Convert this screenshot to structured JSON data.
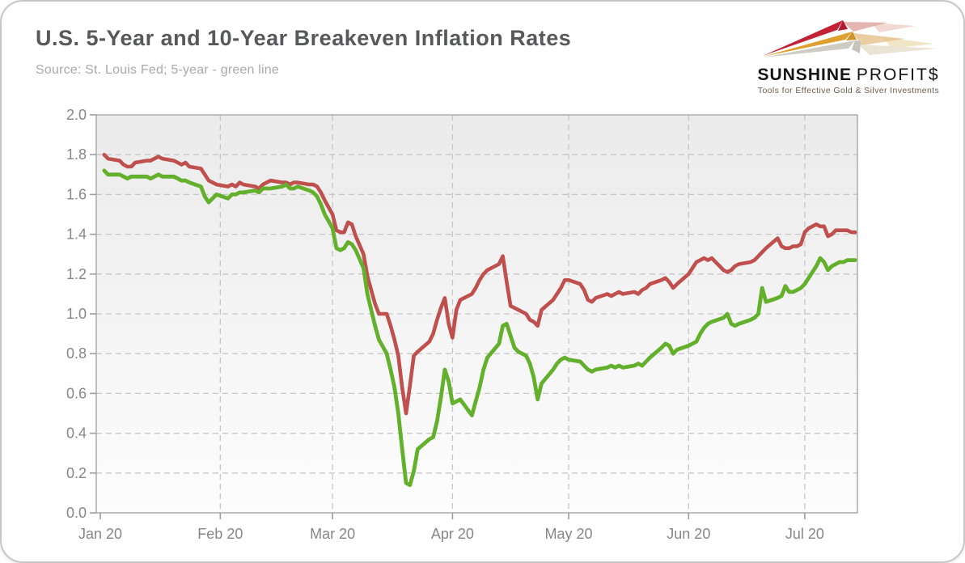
{
  "header": {
    "title": "U.S. 5-Year and 10-Year Breakeven Inflation Rates",
    "source": "Source: St. Louis Fed; 5-year - green line"
  },
  "logo": {
    "brand_primary": "SUNSHINE",
    "brand_secondary": "PROFIT$",
    "tagline": "Tools for Effective Gold & Silver Investments",
    "arrow_colors": {
      "red": "#c32136",
      "gold": "#dfa02f",
      "silver": "#cfccc4"
    }
  },
  "chart_data": {
    "type": "line",
    "title": "U.S. 5-Year and 10-Year Breakeven Inflation Rates",
    "xlabel": "",
    "ylabel": "",
    "grid": "dashed",
    "legend_position": "none (identified in subtitle: 5-year - green line)",
    "y_axis": {
      "min": 0.0,
      "max": 2.0,
      "step": 0.2,
      "tick_labels": [
        "0.0",
        "0.2",
        "0.4",
        "0.6",
        "0.8",
        "1.0",
        "1.2",
        "1.4",
        "1.6",
        "1.8",
        "2.0"
      ]
    },
    "x_axis": {
      "unit": "days since Jan 1, 2020",
      "tick_labels": [
        "Jan 20",
        "Feb 20",
        "Mar 20",
        "Apr 20",
        "May 20",
        "Jun 20",
        "Jul 20"
      ],
      "tick_t": [
        0,
        31,
        60,
        91,
        121,
        152,
        182
      ]
    },
    "t": [
      1,
      2,
      5,
      6,
      7,
      8,
      9,
      12,
      13,
      14,
      15,
      16,
      19,
      20,
      21,
      22,
      23,
      26,
      27,
      28,
      29,
      30,
      33,
      34,
      35,
      36,
      37,
      40,
      41,
      42,
      43,
      44,
      47,
      48,
      49,
      50,
      51,
      54,
      55,
      56,
      57,
      58,
      60,
      61,
      62,
      63,
      64,
      65,
      66,
      68,
      69,
      70,
      71,
      72,
      74,
      75,
      76,
      77,
      78,
      79,
      80,
      81,
      82,
      85,
      86,
      87,
      88,
      89,
      90,
      91,
      92,
      93,
      96,
      97,
      98,
      99,
      100,
      103,
      104,
      105,
      106,
      107,
      108,
      110,
      111,
      112,
      113,
      114,
      117,
      118,
      119,
      120,
      121,
      124,
      125,
      126,
      127,
      128,
      131,
      132,
      133,
      134,
      135,
      138,
      139,
      140,
      141,
      142,
      145,
      146,
      147,
      148,
      149,
      152,
      153,
      154,
      155,
      156,
      157,
      158,
      161,
      162,
      163,
      164,
      165,
      168,
      169,
      170,
      171,
      172,
      175,
      176,
      177,
      178,
      179,
      180,
      181,
      182,
      183,
      184,
      185,
      186,
      187,
      188,
      189,
      190,
      191,
      192,
      193,
      194,
      195
    ],
    "series": [
      {
        "name": "10-Year Breakeven Inflation Rate",
        "color": "#c0504d",
        "width": 4.6,
        "values": [
          1.8,
          1.78,
          1.77,
          1.75,
          1.74,
          1.74,
          1.76,
          1.77,
          1.77,
          1.78,
          1.79,
          1.78,
          1.77,
          1.76,
          1.75,
          1.76,
          1.74,
          1.73,
          1.7,
          1.67,
          1.66,
          1.65,
          1.64,
          1.65,
          1.64,
          1.66,
          1.65,
          1.64,
          1.63,
          1.65,
          1.66,
          1.67,
          1.66,
          1.66,
          1.65,
          1.66,
          1.66,
          1.65,
          1.65,
          1.64,
          1.61,
          1.57,
          1.5,
          1.42,
          1.41,
          1.41,
          1.46,
          1.45,
          1.39,
          1.3,
          1.19,
          1.12,
          1.05,
          1.0,
          1.0,
          0.94,
          0.87,
          0.79,
          0.63,
          0.5,
          0.64,
          0.79,
          0.81,
          0.86,
          0.9,
          0.97,
          1.03,
          1.08,
          0.95,
          0.88,
          1.02,
          1.07,
          1.1,
          1.13,
          1.17,
          1.2,
          1.22,
          1.25,
          1.29,
          1.16,
          1.04,
          1.03,
          1.02,
          1.0,
          0.97,
          0.96,
          0.94,
          1.02,
          1.07,
          1.1,
          1.13,
          1.17,
          1.17,
          1.15,
          1.12,
          1.07,
          1.06,
          1.08,
          1.1,
          1.09,
          1.1,
          1.11,
          1.1,
          1.11,
          1.1,
          1.12,
          1.13,
          1.15,
          1.17,
          1.18,
          1.16,
          1.13,
          1.15,
          1.2,
          1.23,
          1.26,
          1.27,
          1.28,
          1.27,
          1.28,
          1.22,
          1.21,
          1.22,
          1.24,
          1.25,
          1.26,
          1.27,
          1.29,
          1.31,
          1.33,
          1.38,
          1.34,
          1.33,
          1.33,
          1.34,
          1.34,
          1.35,
          1.41,
          1.43,
          1.44,
          1.45,
          1.44,
          1.44,
          1.39,
          1.4,
          1.42,
          1.42,
          1.42,
          1.42,
          1.41,
          1.41
        ]
      },
      {
        "name": "5-Year Breakeven Inflation Rate",
        "color": "#63b02c",
        "width": 4.8,
        "values": [
          1.72,
          1.7,
          1.7,
          1.69,
          1.68,
          1.69,
          1.69,
          1.69,
          1.68,
          1.69,
          1.7,
          1.69,
          1.69,
          1.68,
          1.67,
          1.67,
          1.66,
          1.64,
          1.59,
          1.56,
          1.58,
          1.6,
          1.58,
          1.6,
          1.6,
          1.61,
          1.61,
          1.62,
          1.61,
          1.63,
          1.63,
          1.63,
          1.64,
          1.65,
          1.63,
          1.63,
          1.64,
          1.62,
          1.61,
          1.59,
          1.55,
          1.5,
          1.43,
          1.33,
          1.32,
          1.33,
          1.36,
          1.35,
          1.32,
          1.23,
          1.1,
          1.02,
          0.94,
          0.87,
          0.8,
          0.72,
          0.63,
          0.5,
          0.32,
          0.15,
          0.14,
          0.21,
          0.32,
          0.37,
          0.38,
          0.46,
          0.58,
          0.72,
          0.66,
          0.55,
          0.56,
          0.57,
          0.49,
          0.56,
          0.63,
          0.72,
          0.78,
          0.85,
          0.94,
          0.95,
          0.89,
          0.83,
          0.81,
          0.79,
          0.75,
          0.68,
          0.57,
          0.65,
          0.72,
          0.75,
          0.77,
          0.78,
          0.77,
          0.76,
          0.74,
          0.72,
          0.71,
          0.72,
          0.73,
          0.74,
          0.73,
          0.74,
          0.73,
          0.74,
          0.75,
          0.74,
          0.76,
          0.78,
          0.83,
          0.85,
          0.84,
          0.8,
          0.82,
          0.84,
          0.85,
          0.86,
          0.9,
          0.93,
          0.95,
          0.96,
          0.98,
          1.0,
          0.95,
          0.94,
          0.95,
          0.97,
          0.98,
          1.0,
          1.13,
          1.06,
          1.08,
          1.09,
          1.14,
          1.11,
          1.11,
          1.12,
          1.13,
          1.15,
          1.18,
          1.21,
          1.24,
          1.28,
          1.26,
          1.22,
          1.24,
          1.25,
          1.26,
          1.26,
          1.27,
          1.27,
          1.27
        ]
      }
    ]
  }
}
